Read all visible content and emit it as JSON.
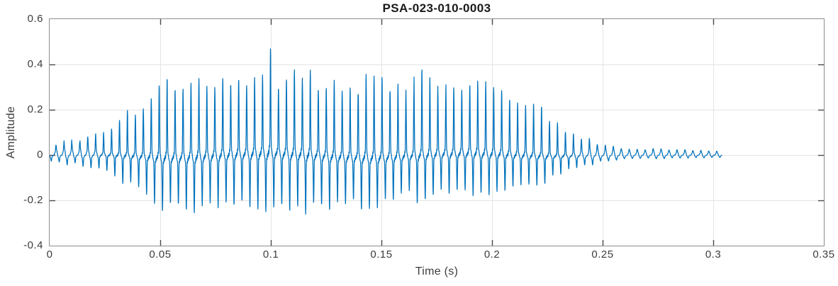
{
  "chart_data": {
    "type": "line",
    "title": "PSA-023-010-0003",
    "xlabel": "Time (s)",
    "ylabel": "Amplitude",
    "xlim": [
      0,
      0.35
    ],
    "ylim": [
      -0.4,
      0.6
    ],
    "xticks": [
      0,
      0.05,
      0.1,
      0.15,
      0.2,
      0.25,
      0.3,
      0.35
    ],
    "yticks": [
      -0.4,
      -0.2,
      0,
      0.2,
      0.4,
      0.6
    ],
    "grid": true,
    "legend": "none",
    "colors": {
      "line": "#0072BD",
      "axis_box": "#8d8d8d",
      "tick_mark": "#4a4a4a",
      "grid": "#e4e4e4",
      "tick_text": "#3d3d3d",
      "title_text": "#1a1a1a",
      "background": "#ffffff"
    },
    "signal": {
      "kind": "voiced-speech-waveform",
      "t_start": 0,
      "t_end": 0.304,
      "sample_rate_hz": 12000,
      "pitch_hz": 278,
      "peak": {
        "time": 0.1,
        "value": 0.45
      },
      "trough": {
        "time": 0.101,
        "value": -0.33
      },
      "harmonic_amplitudes": [
        1,
        0.8,
        0.62,
        0.5,
        0.38,
        0.28,
        0.2,
        0.14
      ],
      "negative_pulse_delay_rad": 2.6,
      "negative_pulse_gain": 0.82,
      "envelope": [
        [
          0,
          0.04
        ],
        [
          0.01,
          0.055
        ],
        [
          0.02,
          0.08
        ],
        [
          0.03,
          0.14
        ],
        [
          0.04,
          0.22
        ],
        [
          0.05,
          0.32
        ],
        [
          0.06,
          0.33
        ],
        [
          0.07,
          0.3
        ],
        [
          0.08,
          0.31
        ],
        [
          0.09,
          0.32
        ],
        [
          0.097,
          0.32
        ],
        [
          0.1,
          0.45
        ],
        [
          0.103,
          0.33
        ],
        [
          0.11,
          0.32
        ],
        [
          0.12,
          0.33
        ],
        [
          0.13,
          0.31
        ],
        [
          0.14,
          0.3
        ],
        [
          0.15,
          0.34
        ],
        [
          0.16,
          0.3
        ],
        [
          0.17,
          0.32
        ],
        [
          0.18,
          0.3
        ],
        [
          0.19,
          0.29
        ],
        [
          0.2,
          0.28
        ],
        [
          0.21,
          0.26
        ],
        [
          0.22,
          0.2
        ],
        [
          0.23,
          0.14
        ],
        [
          0.24,
          0.08
        ],
        [
          0.25,
          0.04
        ],
        [
          0.26,
          0.026
        ],
        [
          0.28,
          0.022
        ],
        [
          0.304,
          0.018
        ]
      ],
      "negative_scale_envelope": [
        [
          0,
          0.8
        ],
        [
          0.13,
          0.82
        ],
        [
          0.16,
          0.66
        ],
        [
          0.25,
          0.7
        ],
        [
          0.304,
          0.7
        ]
      ]
    }
  }
}
